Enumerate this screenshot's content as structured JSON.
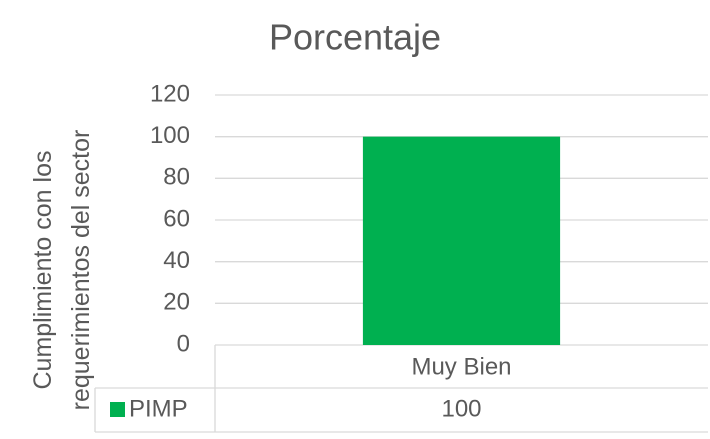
{
  "chart_data": {
    "type": "bar",
    "title": "Porcentaje",
    "ylabel": "Cumplimiento con los requerimientos del sector",
    "categories": [
      "Muy Bien"
    ],
    "series": [
      {
        "name": "PIMP",
        "color": "#00b050",
        "values": [
          100
        ]
      }
    ],
    "ylim": [
      0,
      120
    ],
    "yticks": [
      0,
      20,
      40,
      60,
      80,
      100,
      120
    ],
    "grid": true,
    "data_table": true
  }
}
